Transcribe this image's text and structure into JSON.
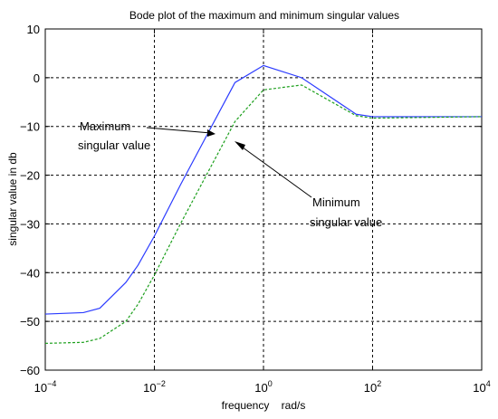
{
  "chart_data": {
    "type": "line",
    "title": "Bode plot of the maximum and minimum singular values",
    "xlabel": "frequency    rad/s",
    "ylabel": "singular value in db",
    "xscale": "log",
    "xlim": [
      0.0001,
      10000
    ],
    "ylim": [
      -60,
      10
    ],
    "grid": true,
    "x_ticks": [
      {
        "value": 0.0001,
        "base": "10",
        "exp": "−4"
      },
      {
        "value": 0.01,
        "base": "10",
        "exp": "−2"
      },
      {
        "value": 1,
        "base": "10",
        "exp": "0"
      },
      {
        "value": 100,
        "base": "10",
        "exp": "2"
      },
      {
        "value": 10000,
        "base": "10",
        "exp": "4"
      }
    ],
    "y_ticks": [
      {
        "value": 10,
        "label": "10"
      },
      {
        "value": 0,
        "label": "0"
      },
      {
        "value": -10,
        "label": "−10"
      },
      {
        "value": -20,
        "label": "−20"
      },
      {
        "value": -30,
        "label": "−30"
      },
      {
        "value": -40,
        "label": "−40"
      },
      {
        "value": -50,
        "label": "−50"
      },
      {
        "value": -60,
        "label": "−60"
      }
    ],
    "series": [
      {
        "color": "#2b3bff",
        "dash": "solid",
        "points": [
          [
            0.0001,
            -48.5
          ],
          [
            0.0005,
            -48.2
          ],
          [
            0.001,
            -47.3
          ],
          [
            0.003,
            -42
          ],
          [
            0.005,
            -38.5
          ],
          [
            0.01,
            -32.5
          ],
          [
            0.03,
            -22
          ],
          [
            0.1,
            -11
          ],
          [
            0.3,
            -1
          ],
          [
            1,
            2.5
          ],
          [
            5,
            0
          ],
          [
            50,
            -7.5
          ],
          [
            100,
            -8
          ],
          [
            10000,
            -8
          ]
        ]
      },
      {
        "color": "#1ea01e",
        "dash": "dashed",
        "points": [
          [
            0.0001,
            -54.5
          ],
          [
            0.0005,
            -54.3
          ],
          [
            0.001,
            -53.5
          ],
          [
            0.003,
            -50
          ],
          [
            0.005,
            -46.5
          ],
          [
            0.01,
            -40.5
          ],
          [
            0.03,
            -30
          ],
          [
            0.1,
            -19
          ],
          [
            0.3,
            -9
          ],
          [
            1,
            -2.5
          ],
          [
            5,
            -1.5
          ],
          [
            50,
            -7.8
          ],
          [
            100,
            -8.3
          ],
          [
            10000,
            -8
          ]
        ]
      }
    ],
    "annotations": [
      {
        "lines": [
          "Maximum",
          "singular value"
        ]
      },
      {
        "lines": [
          "Minimum",
          "singular value"
        ]
      }
    ]
  }
}
